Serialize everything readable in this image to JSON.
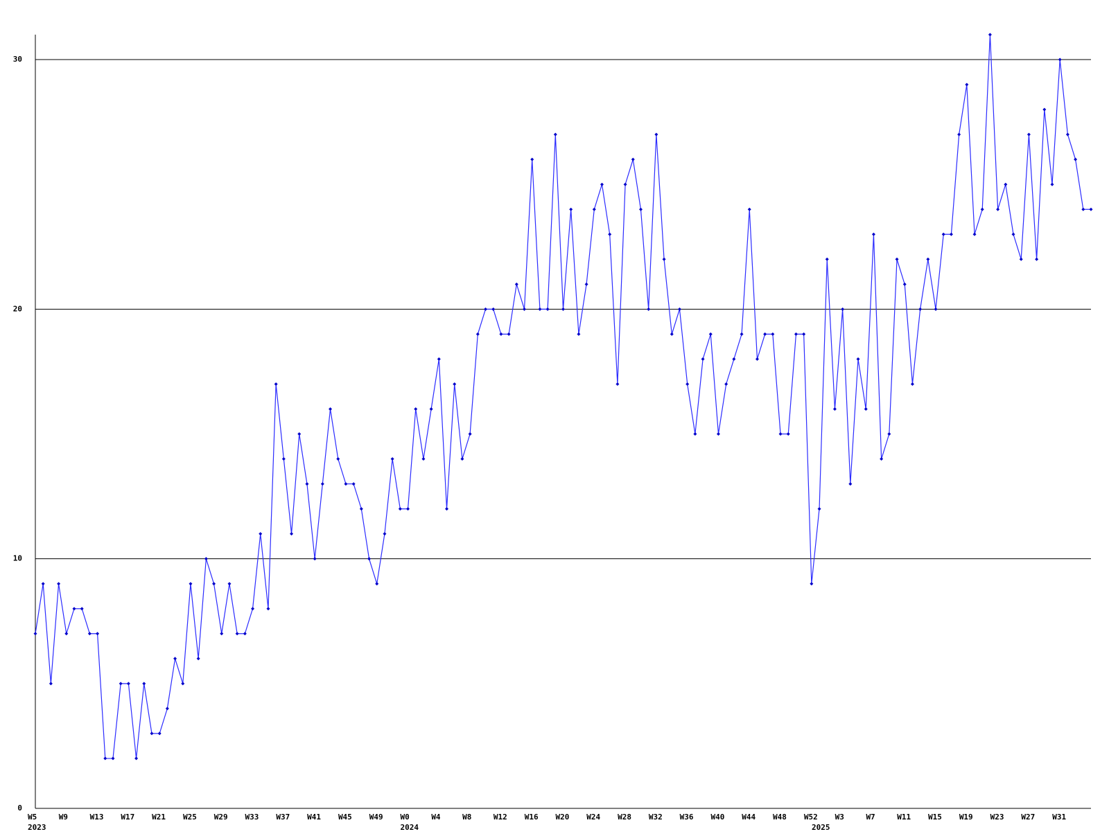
{
  "chart_data": {
    "type": "line",
    "categories": [
      "W5",
      null,
      null,
      null,
      "W9",
      null,
      null,
      null,
      "W13",
      null,
      null,
      null,
      "W17",
      null,
      null,
      null,
      "W21",
      null,
      null,
      null,
      "W25",
      null,
      null,
      null,
      "W29",
      null,
      null,
      null,
      "W33",
      null,
      null,
      null,
      "W37",
      null,
      null,
      null,
      "W41",
      null,
      null,
      null,
      "W45",
      null,
      null,
      null,
      "W49",
      null,
      null,
      null,
      "W0",
      null,
      null,
      null,
      "W4",
      null,
      null,
      null,
      "W8",
      null,
      null,
      null,
      "W12",
      null,
      null,
      null,
      "W16",
      null,
      null,
      null,
      "W20",
      null,
      null,
      null,
      "W24",
      null,
      null,
      null,
      "W28",
      null,
      null,
      null,
      "W32",
      null,
      null,
      null,
      "W36",
      null,
      null,
      null,
      "W40",
      null,
      null,
      null,
      "W44",
      null,
      null,
      null,
      "W48",
      null,
      null,
      null,
      "W52",
      null,
      null,
      null,
      "W3",
      null,
      null,
      null,
      "W7",
      null,
      null,
      null,
      "W11",
      null,
      null,
      null,
      "W15",
      null,
      null,
      null,
      "W19",
      null,
      null,
      null,
      "W23",
      null,
      null,
      null,
      "W27",
      null,
      null,
      null,
      "W31",
      null,
      null,
      null,
      null
    ],
    "category_years": [
      "2023",
      null,
      null,
      null,
      null,
      null,
      null,
      null,
      null,
      null,
      null,
      null,
      null,
      null,
      null,
      null,
      null,
      null,
      null,
      null,
      null,
      null,
      null,
      null,
      null,
      null,
      null,
      null,
      null,
      null,
      null,
      null,
      null,
      null,
      null,
      null,
      null,
      null,
      null,
      null,
      null,
      null,
      null,
      null,
      null,
      null,
      null,
      null,
      "2024",
      null,
      null,
      null,
      null,
      null,
      null,
      null,
      null,
      null,
      null,
      null,
      null,
      null,
      null,
      null,
      null,
      null,
      null,
      null,
      null,
      null,
      null,
      null,
      null,
      null,
      null,
      null,
      null,
      null,
      null,
      null,
      null,
      null,
      null,
      null,
      null,
      null,
      null,
      null,
      null,
      null,
      null,
      null,
      null,
      null,
      null,
      null,
      null,
      null,
      null,
      null,
      null,
      "2025",
      null,
      null,
      null,
      null,
      null,
      null,
      null,
      null,
      null,
      null,
      null,
      null,
      null,
      null,
      null,
      null,
      null,
      null,
      null,
      null,
      null,
      null,
      null,
      null,
      null,
      null,
      null,
      null,
      null,
      null,
      null,
      null,
      null,
      null,
      null
    ],
    "series": [
      {
        "color": "#2b2bff",
        "marker_color": "#0000c8",
        "values": [
          7,
          9,
          5,
          9,
          7,
          8,
          8,
          7,
          7,
          2,
          2,
          5,
          5,
          2,
          5,
          3,
          3,
          4,
          6,
          5,
          9,
          6,
          10,
          9,
          7,
          9,
          7,
          7,
          8,
          11,
          8,
          17,
          14,
          11,
          15,
          13,
          10,
          13,
          16,
          14,
          13,
          13,
          12,
          10,
          9,
          11,
          14,
          12,
          12,
          16,
          14,
          16,
          18,
          12,
          17,
          14,
          15,
          19,
          20,
          20,
          19,
          19,
          21,
          20,
          26,
          20,
          20,
          27,
          20,
          24,
          19,
          21,
          24,
          25,
          23,
          17,
          25,
          26,
          24,
          20,
          27,
          22,
          19,
          20,
          17,
          15,
          18,
          19,
          15,
          17,
          18,
          19,
          24,
          18,
          19,
          19,
          15,
          15,
          19,
          19,
          9,
          12,
          22,
          16,
          20,
          13,
          18,
          16,
          23,
          14,
          15,
          22,
          21,
          17,
          20,
          22,
          20,
          23,
          23,
          27,
          29,
          23,
          24,
          31,
          24,
          25,
          23,
          22,
          27,
          22,
          28,
          25,
          30,
          27,
          26,
          24,
          24
        ]
      }
    ],
    "ylim": [
      0,
      31
    ],
    "yticks": [
      0,
      10,
      20,
      30
    ],
    "grid": true
  }
}
